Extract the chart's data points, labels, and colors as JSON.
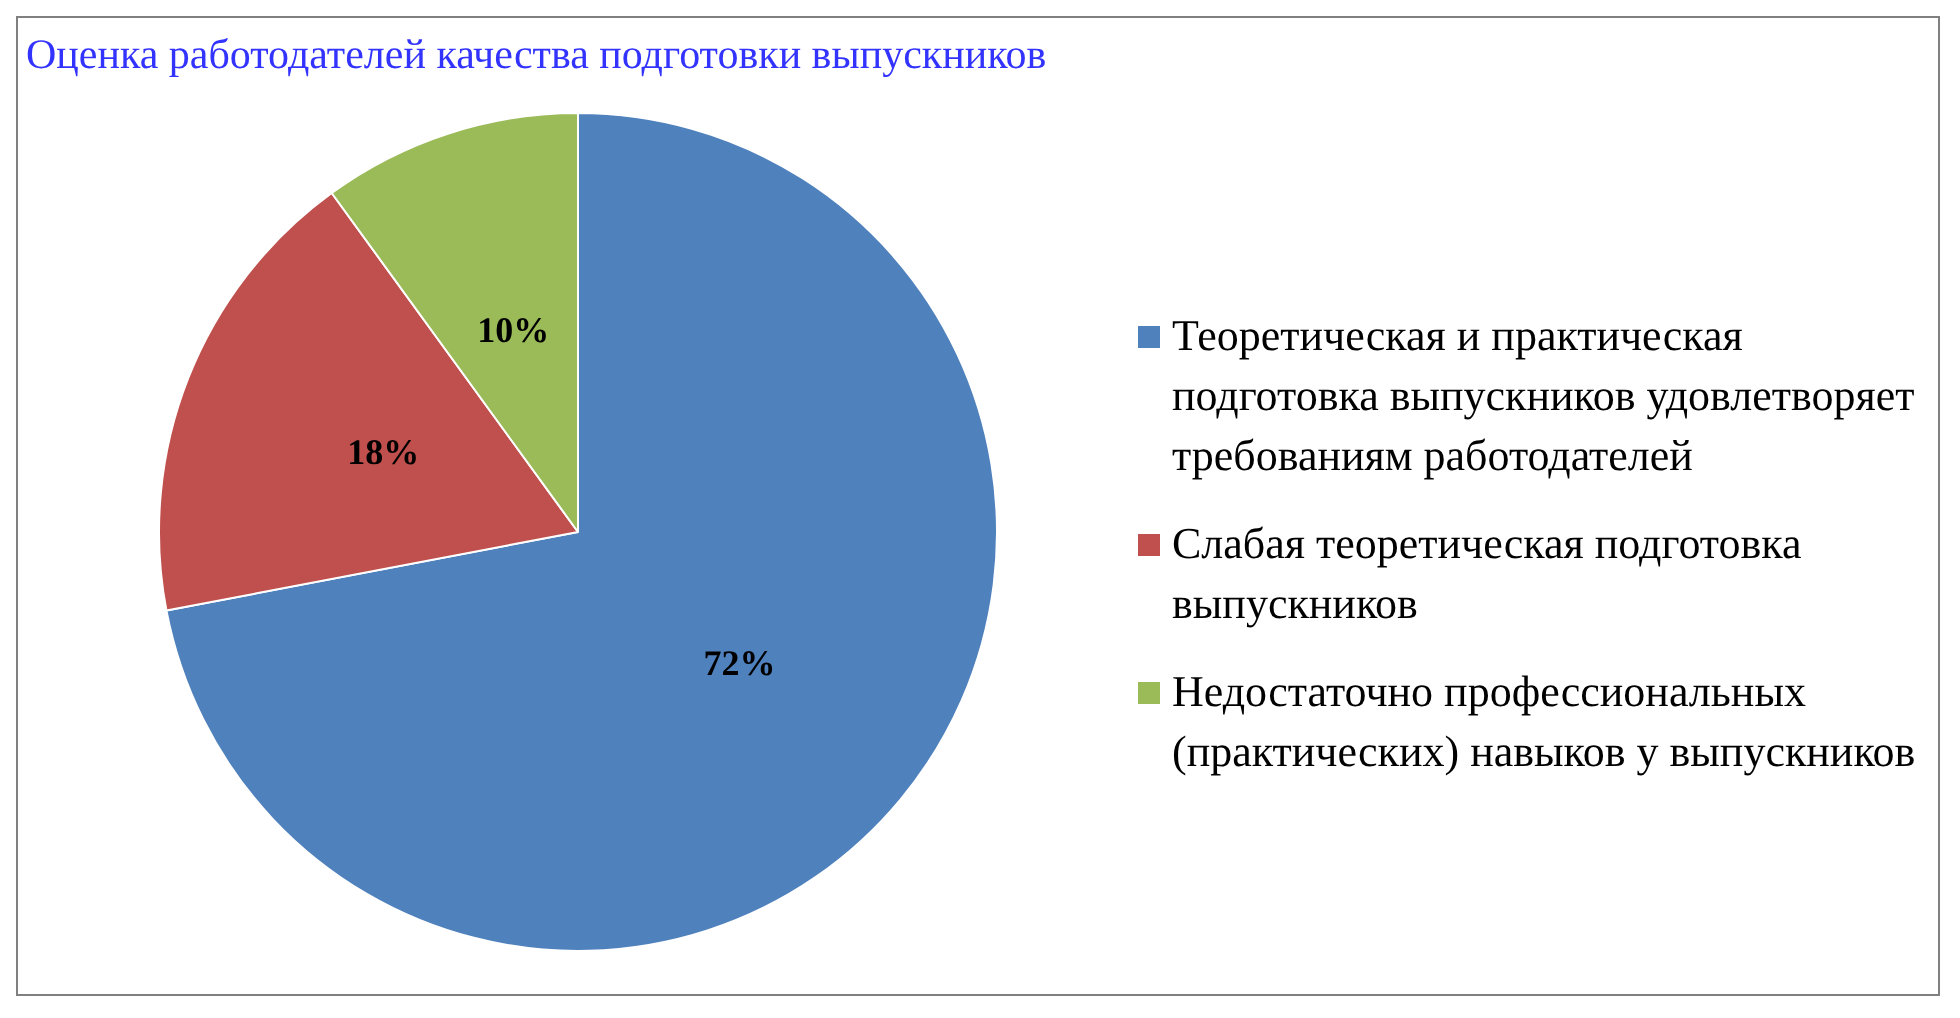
{
  "chart_data": {
    "type": "pie",
    "title": "Оценка работодателей качества подготовки выпускников",
    "categories": [
      "Теоретическая и практическая подготовка выпускников удовлетворяет требованиям работодателей",
      "Слабая теоретическая подготовка выпускников",
      "Недостаточно профессиональных (практических) навыков у выпускников"
    ],
    "values": [
      72,
      18,
      10
    ],
    "colors": [
      "#4f81bd",
      "#c0504d",
      "#9bbb59"
    ],
    "value_labels": [
      "72%",
      "18%",
      "10%"
    ],
    "legend": "right"
  }
}
